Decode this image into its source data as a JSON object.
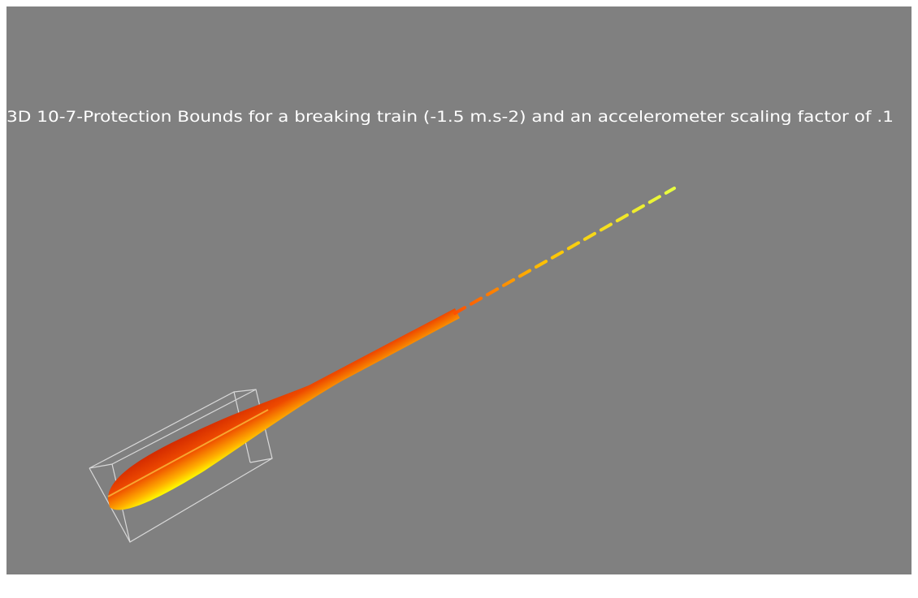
{
  "title": "3D 10-7-Protection Bounds for a breaking train (-1.5 m.s-2) and an accelerometer scaling factor of .1"
}
